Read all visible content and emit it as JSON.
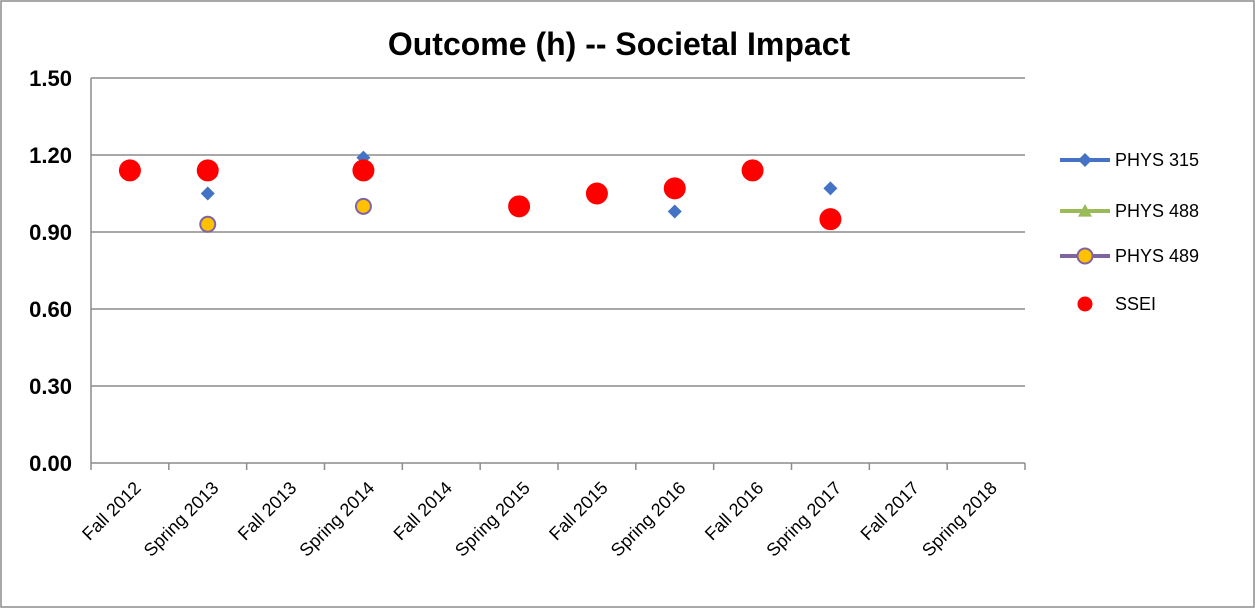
{
  "chart_data": {
    "type": "scatter",
    "title": "Outcome (h) -- Societal Impact",
    "xlabel": "",
    "ylabel": "",
    "categories": [
      "Fall 2012",
      "Spring 2013",
      "Fall 2013",
      "Spring 2014",
      "Fall 2014",
      "Spring 2015",
      "Fall 2015",
      "Spring 2016",
      "Fall 2016",
      "Spring 2017",
      "Fall 2017",
      "Spring 2018"
    ],
    "ylim": [
      0,
      1.5
    ],
    "yticks": [
      "0.00",
      "0.30",
      "0.60",
      "0.90",
      "1.20",
      "1.50"
    ],
    "grid": true,
    "legend_position": "right",
    "series": [
      {
        "name": "PHYS 315",
        "marker": "diamond",
        "color": "#4472C4",
        "values": [
          null,
          1.05,
          null,
          1.19,
          null,
          null,
          null,
          0.98,
          null,
          1.07,
          null,
          null
        ]
      },
      {
        "name": "PHYS 488",
        "marker": "triangle",
        "color": "#9BBB59",
        "values": [
          null,
          null,
          null,
          null,
          null,
          null,
          null,
          null,
          null,
          null,
          null,
          null
        ]
      },
      {
        "name": "PHYS 489",
        "marker": "circle-outline",
        "color": "#FFC000",
        "edge": "#8064A2",
        "values": [
          null,
          0.93,
          null,
          1.0,
          null,
          null,
          null,
          null,
          null,
          null,
          null,
          null
        ]
      },
      {
        "name": "SSEI",
        "marker": "big-circle",
        "color": "#FF0000",
        "values": [
          1.14,
          1.14,
          null,
          1.14,
          null,
          1.0,
          1.05,
          1.07,
          1.14,
          0.95,
          null,
          null
        ]
      }
    ]
  }
}
